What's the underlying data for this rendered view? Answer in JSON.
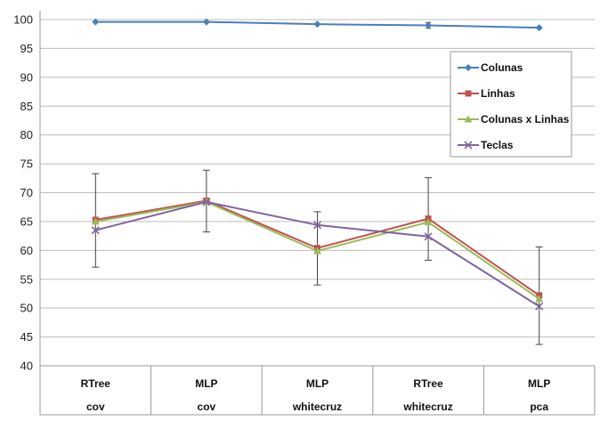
{
  "chart_data": {
    "type": "line",
    "categories": [
      [
        "RTree",
        "cov"
      ],
      [
        "MLP",
        "cov"
      ],
      [
        "MLP",
        "whitecruz"
      ],
      [
        "RTree",
        "whitecruz"
      ],
      [
        "MLP",
        "pca"
      ]
    ],
    "ylim": [
      40,
      100
    ],
    "yticks": [
      40,
      45,
      50,
      55,
      60,
      65,
      70,
      75,
      80,
      85,
      90,
      95,
      100
    ],
    "grid": "horizontal",
    "legend_position": "right",
    "series": [
      {
        "name": "Colunas",
        "color": "#4a7ebb",
        "marker": "diamond",
        "values": [
          99.6,
          99.6,
          99.2,
          99.0,
          98.6
        ],
        "error": [
          null,
          null,
          null,
          0.5,
          null
        ]
      },
      {
        "name": "Linhas",
        "color": "#c0504d",
        "marker": "square",
        "values": [
          65.3,
          68.6,
          60.4,
          65.5,
          52.2
        ],
        "error": [
          null,
          null,
          null,
          null,
          null
        ]
      },
      {
        "name": "Colunas x Linhas",
        "color": "#9bbb59",
        "marker": "triangle",
        "values": [
          65.0,
          68.4,
          59.9,
          64.9,
          51.6
        ],
        "error": [
          null,
          null,
          null,
          null,
          null
        ]
      },
      {
        "name": "Teclas",
        "color": "#8064a2",
        "marker": "x",
        "values": [
          63.5,
          68.4,
          64.4,
          62.4,
          50.3
        ],
        "error": [
          null,
          null,
          null,
          null,
          null
        ]
      }
    ],
    "error_bars": {
      "color": "#444444",
      "ranges": [
        [
          57.1,
          73.3
        ],
        [
          63.2,
          73.9
        ],
        [
          54.0,
          66.7
        ],
        [
          58.3,
          72.6
        ],
        [
          43.7,
          60.6
        ]
      ]
    }
  }
}
